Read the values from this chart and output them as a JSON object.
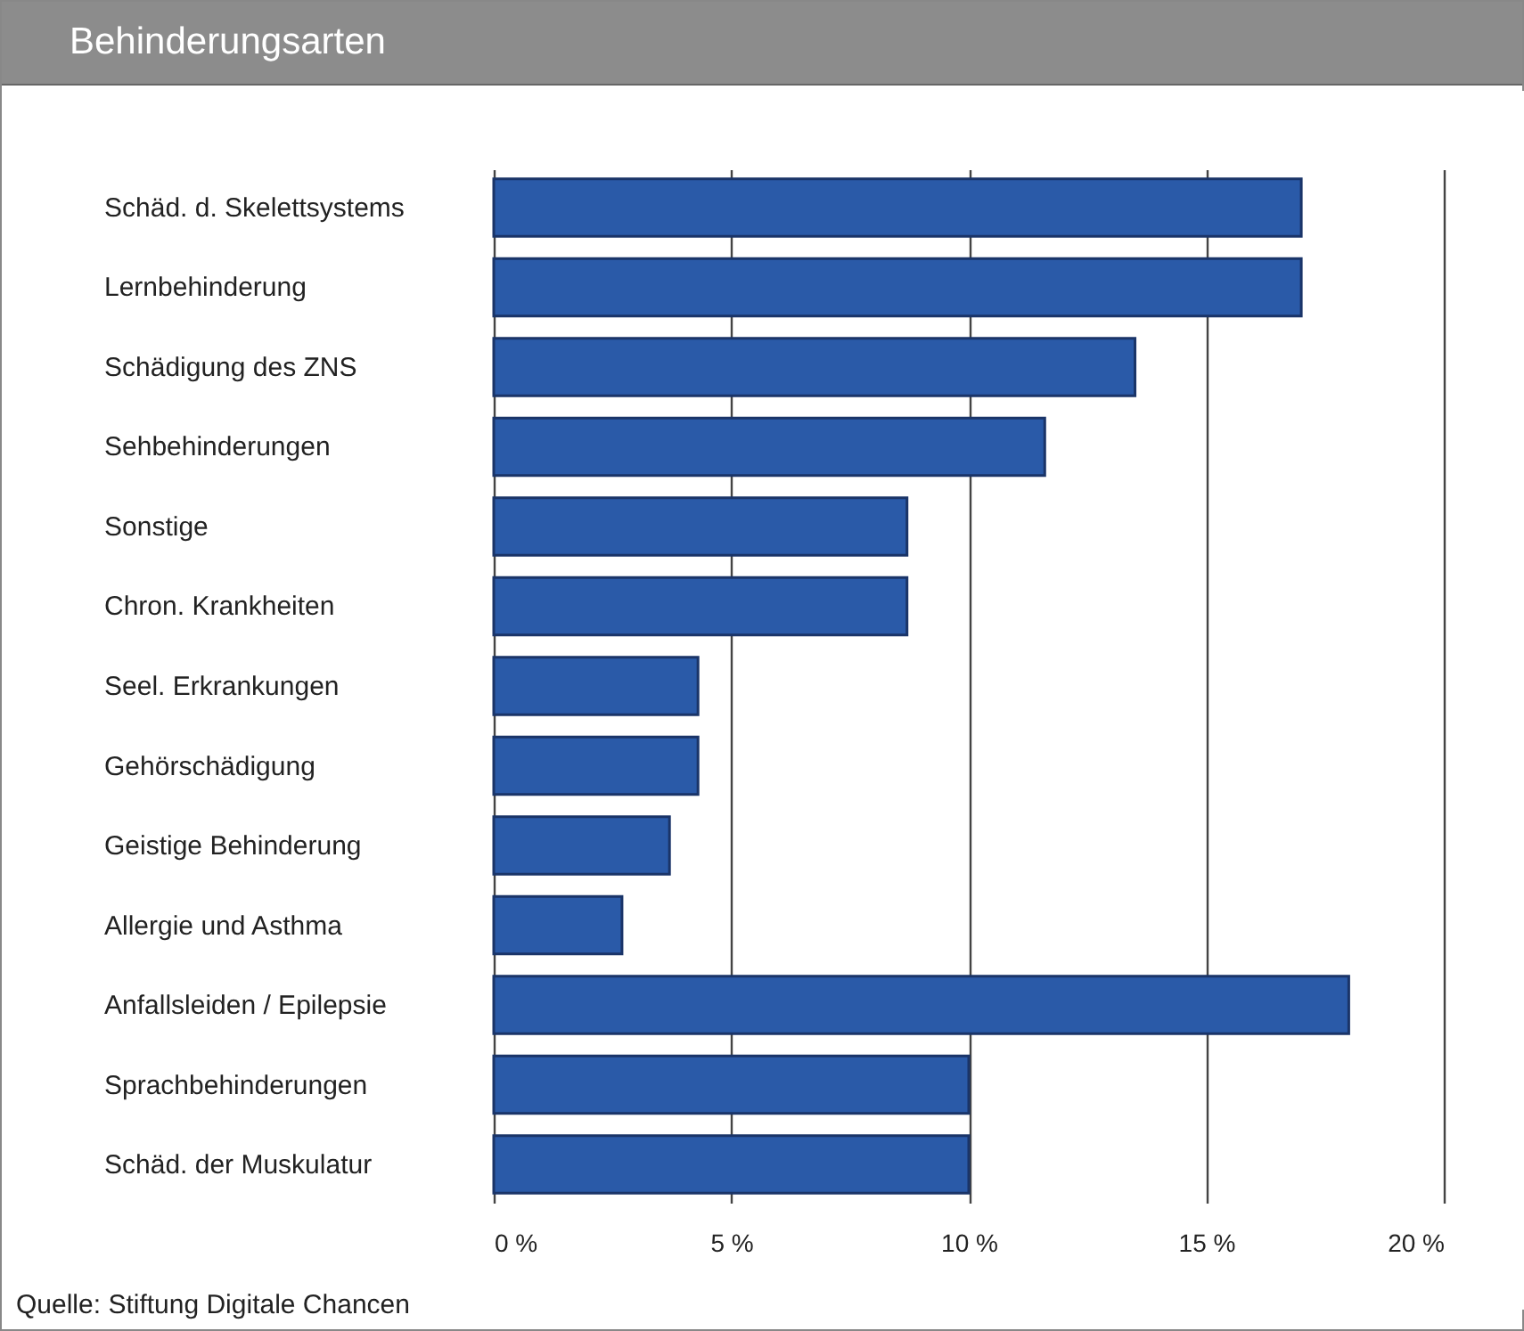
{
  "chart_data": {
    "type": "bar",
    "orientation": "horizontal",
    "title": "Behinderungsarten",
    "categories": [
      "Schäd. d. Skelettsystems",
      "Lernbehinderung",
      "Schädigung des ZNS",
      "Sehbehinderungen",
      "Sonstige",
      "Chron. Krankheiten",
      "Seel. Erkrankungen",
      "Gehörschädigung",
      "Geistige Behinderung",
      "Allergie und Asthma",
      "Anfallsleiden / Epilepsie",
      "Sprachbehinderungen",
      "Schäd. der Muskulatur"
    ],
    "values": [
      17.0,
      17.0,
      13.5,
      11.6,
      8.7,
      8.7,
      4.3,
      4.3,
      3.7,
      2.7,
      18.0,
      10.0,
      10.0
    ],
    "color": "#2a5aa8",
    "xlim": [
      0,
      20
    ],
    "xticks": [
      {
        "value": 0,
        "label": "0 %"
      },
      {
        "value": 5,
        "label": "5 %"
      },
      {
        "value": 10,
        "label": "10 %"
      },
      {
        "value": 15,
        "label": "15 %"
      },
      {
        "value": 20,
        "label": "20 %"
      }
    ],
    "grid": "x",
    "annotations": [
      "Quelle: Stiftung Digitale Chancen"
    ]
  }
}
